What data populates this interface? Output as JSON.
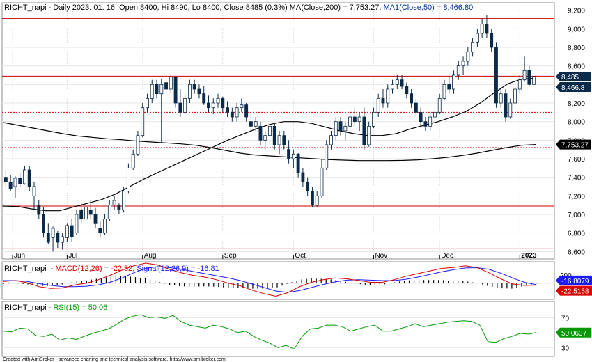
{
  "main_panel": {
    "header": {
      "symbol": "RICHT_napi",
      "info": " - Daily 2023. 01. 16. Open 8400, Hi 8490, Lo 8400, Close 8485 (0.3%) ",
      "ma200_text": "MA(Close,200) = 7,753.27,",
      "ma50_text": "MA1(Close,50) = 8,466.80"
    },
    "price_labels": {
      "close": "8,485",
      "ma50": "8,466.8",
      "ma200": "7,753.27"
    },
    "months": [
      "Jun",
      "Jul",
      "Aug",
      "Sep",
      "Oct",
      "Nov",
      "Dec",
      "2023"
    ]
  },
  "macd_panel": {
    "header": {
      "symbol": "RICHT_napi",
      "macd_text": "MACD(12,26) = -22.52,",
      "signal_text": "Signal(12,26,9) = -16.81"
    },
    "labels": {
      "top_tick": "200",
      "signal": "-16.8079",
      "macd": "-22.5158"
    }
  },
  "rsi_panel": {
    "header": {
      "symbol": "RICHT_napi",
      "rsi_text": "RSI(15) = 50.06"
    },
    "ticks": [
      "70",
      "30"
    ],
    "value_label": "50.0637"
  },
  "footer": "Created with AmiBroker - advanced charting and technical analysis software. http://www.amibroker.com",
  "colors": {
    "candle": "#0b2a4a",
    "ma": "#000000",
    "support_line": "#cc0000",
    "macd_line": "#dd0000",
    "signal_line": "#1a1aff",
    "rsi_line": "#009900",
    "close_label_bg": "#0b2a4a",
    "ma200_label_bg": "#000000",
    "signal_label_bg": "#1a1aff",
    "macd_label_bg": "#dd0000",
    "rsi_label_bg": "#009900"
  },
  "chart_data": [
    {
      "type": "candlestick",
      "title": "RICHT_napi - Daily",
      "y_ticks": [
        6600,
        6800,
        7000,
        7200,
        7400,
        7600,
        7800,
        8000,
        8200,
        8400,
        8600,
        8800,
        9000,
        9200
      ],
      "ylim": [
        6520,
        9280
      ],
      "horizontal_lines": [
        {
          "value": 9110,
          "style": "solid"
        },
        {
          "value": 8490,
          "style": "solid"
        },
        {
          "value": 8100,
          "style": "dotted"
        },
        {
          "value": 7720,
          "style": "dotted"
        },
        {
          "value": 7090,
          "style": "solid"
        },
        {
          "value": 6630,
          "style": "solid"
        }
      ],
      "last": {
        "open": 8400,
        "high": 8490,
        "low": 8400,
        "close": 8485,
        "change_pct": 0.3
      },
      "series": [
        {
          "name": "RICHT_napi",
          "ohlc": [
            [
              7400,
              7480,
              7300,
              7350
            ],
            [
              7350,
              7420,
              7250,
              7280
            ],
            [
              7300,
              7410,
              7180,
              7390
            ],
            [
              7390,
              7450,
              7300,
              7330
            ],
            [
              7330,
              7520,
              7320,
              7480
            ],
            [
              7480,
              7520,
              7250,
              7300
            ],
            [
              7200,
              7350,
              7050,
              7300
            ],
            [
              7100,
              7150,
              6950,
              7000
            ],
            [
              7000,
              7080,
              6750,
              6800
            ],
            [
              6800,
              6900,
              6680,
              6700
            ],
            [
              6750,
              6870,
              6600,
              6850
            ],
            [
              6800,
              6820,
              6640,
              6700
            ],
            [
              6700,
              6800,
              6620,
              6760
            ],
            [
              6750,
              6900,
              6700,
              6880
            ],
            [
              6880,
              6950,
              6700,
              6760
            ],
            [
              6800,
              7050,
              6780,
              7000
            ],
            [
              7050,
              7120,
              6900,
              6950
            ],
            [
              6950,
              7100,
              6930,
              7080
            ],
            [
              7050,
              7150,
              6950,
              7000
            ],
            [
              7000,
              7070,
              6850,
              6900
            ],
            [
              6850,
              6930,
              6750,
              6800
            ],
            [
              6800,
              7000,
              6780,
              6950
            ],
            [
              6950,
              7150,
              6930,
              7100
            ],
            [
              7100,
              7200,
              7050,
              7150
            ],
            [
              7100,
              7120,
              7000,
              7050
            ],
            [
              7050,
              7300,
              7020,
              7250
            ],
            [
              7250,
              7550,
              7230,
              7500
            ],
            [
              7500,
              7700,
              7480,
              7650
            ],
            [
              7650,
              7900,
              7630,
              7850
            ],
            [
              7850,
              8200,
              7830,
              8150
            ],
            [
              8150,
              8300,
              8100,
              8250
            ],
            [
              8250,
              8450,
              8200,
              8400
            ],
            [
              8400,
              8450,
              8250,
              8300
            ],
            [
              8300,
              8460,
              7780,
              8400
            ],
            [
              8420,
              8450,
              8300,
              8350
            ],
            [
              8350,
              8500,
              8300,
              8480
            ],
            [
              8480,
              8490,
              8150,
              8200
            ],
            [
              8200,
              8350,
              8050,
              8100
            ],
            [
              8100,
              8300,
              8080,
              8250
            ],
            [
              8250,
              8450,
              8200,
              8400
            ],
            [
              8400,
              8450,
              8300,
              8350
            ],
            [
              8350,
              8400,
              8250,
              8300
            ],
            [
              8300,
              8380,
              8180,
              8200
            ],
            [
              8200,
              8280,
              8100,
              8150
            ],
            [
              8150,
              8250,
              8080,
              8200
            ],
            [
              8200,
              8300,
              8150,
              8250
            ],
            [
              8250,
              8270,
              8100,
              8150
            ],
            [
              8150,
              8220,
              8050,
              8100
            ],
            [
              8100,
              8150,
              8000,
              8050
            ],
            [
              8050,
              8200,
              8000,
              8150
            ],
            [
              8150,
              8250,
              8100,
              8180
            ],
            [
              8180,
              8200,
              8000,
              8050
            ],
            [
              8000,
              8100,
              7900,
              7950
            ],
            [
              7950,
              8050,
              7900,
              8000
            ],
            [
              7950,
              8000,
              7750,
              7800
            ],
            [
              7800,
              7900,
              7700,
              7850
            ],
            [
              7850,
              8000,
              7830,
              7950
            ],
            [
              7950,
              7980,
              7700,
              7750
            ],
            [
              7750,
              7900,
              7650,
              7850
            ],
            [
              7850,
              7900,
              7700,
              7750
            ],
            [
              7700,
              7800,
              7550,
              7600
            ],
            [
              7600,
              7700,
              7500,
              7650
            ],
            [
              7650,
              7660,
              7400,
              7450
            ],
            [
              7450,
              7500,
              7300,
              7350
            ],
            [
              7350,
              7400,
              7200,
              7250
            ],
            [
              7250,
              7300,
              7080,
              7100
            ],
            [
              7100,
              7250,
              7080,
              7200
            ],
            [
              7200,
              7600,
              7180,
              7500
            ],
            [
              7500,
              7800,
              7480,
              7750
            ],
            [
              7750,
              7900,
              7700,
              7850
            ],
            [
              7850,
              8050,
              7800,
              8000
            ],
            [
              8000,
              8050,
              7850,
              7900
            ],
            [
              7900,
              8000,
              7800,
              7950
            ],
            [
              7950,
              8100,
              7900,
              8050
            ],
            [
              8050,
              8150,
              7950,
              8000
            ],
            [
              8000,
              8100,
              7900,
              8050
            ],
            [
              8050,
              8150,
              7700,
              7750
            ],
            [
              7750,
              8000,
              7730,
              7950
            ],
            [
              7950,
              8150,
              7930,
              8100
            ],
            [
              8100,
              8300,
              8050,
              8250
            ],
            [
              8250,
              8350,
              8150,
              8200
            ],
            [
              8200,
              8400,
              8150,
              8350
            ],
            [
              8350,
              8450,
              8300,
              8400
            ],
            [
              8400,
              8500,
              8350,
              8450
            ],
            [
              8450,
              8500,
              8350,
              8380
            ],
            [
              8380,
              8420,
              8250,
              8300
            ],
            [
              8300,
              8350,
              8150,
              8200
            ],
            [
              8200,
              8250,
              8050,
              8100
            ],
            [
              8100,
              8150,
              7950,
              8000
            ],
            [
              8000,
              8050,
              7900,
              7950
            ],
            [
              7950,
              8100,
              7900,
              8050
            ],
            [
              8050,
              8150,
              8000,
              8100
            ],
            [
              8100,
              8300,
              8080,
              8250
            ],
            [
              8250,
              8450,
              8230,
              8400
            ],
            [
              8400,
              8480,
              8300,
              8350
            ],
            [
              8350,
              8550,
              8300,
              8500
            ],
            [
              8500,
              8650,
              8450,
              8600
            ],
            [
              8600,
              8700,
              8500,
              8650
            ],
            [
              8650,
              8800,
              8600,
              8750
            ],
            [
              8750,
              8900,
              8700,
              8850
            ],
            [
              8850,
              9000,
              8800,
              8950
            ],
            [
              8950,
              9100,
              8900,
              9050
            ],
            [
              9050,
              9150,
              8900,
              8950
            ],
            [
              8950,
              9000,
              8750,
              8800
            ],
            [
              8800,
              8850,
              8150,
              8200
            ],
            [
              8200,
              8350,
              8150,
              8300
            ],
            [
              8300,
              8350,
              8000,
              8050
            ],
            [
              8050,
              8250,
              8030,
              8200
            ],
            [
              8200,
              8400,
              8180,
              8350
            ],
            [
              8350,
              8500,
              8300,
              8450
            ],
            [
              8450,
              8700,
              8430,
              8550
            ],
            [
              8550,
              8600,
              8380,
              8400
            ],
            [
              8400,
              8490,
              8400,
              8485
            ]
          ]
        },
        {
          "name": "MA(Close,200)",
          "values": [
            7990,
            7960,
            7930,
            7900,
            7870,
            7845,
            7830,
            7815,
            7805,
            7790,
            7780,
            7770,
            7760,
            7745,
            7720,
            7690,
            7660,
            7640,
            7630,
            7620,
            7610,
            7600,
            7590,
            7585,
            7580,
            7580,
            7580,
            7582,
            7588,
            7600,
            7615,
            7635,
            7660,
            7690,
            7720,
            7745,
            7753
          ]
        },
        {
          "name": "MA1(Close,50)",
          "values": [
            7090,
            7085,
            7060,
            7040,
            7040,
            7080,
            7120,
            7160,
            7220,
            7300,
            7380,
            7450,
            7520,
            7590,
            7660,
            7730,
            7800,
            7860,
            7920,
            7970,
            8000,
            8000,
            7980,
            7940,
            7900,
            7870,
            7850,
            7850,
            7870,
            7920,
            7960,
            8000,
            8050,
            8110,
            8200,
            8310,
            8410,
            8460,
            8466.8
          ]
        }
      ]
    },
    {
      "type": "line",
      "title": "MACD(12,26)",
      "ylim": [
        -170,
        230
      ],
      "series": [
        {
          "name": "MACD(12,26)",
          "values": [
            20,
            30,
            5,
            -40,
            -60,
            -55,
            -20,
            0,
            40,
            90,
            150,
            200,
            230,
            210,
            160,
            120,
            90,
            70,
            40,
            0,
            -30,
            -80,
            -120,
            -150,
            -110,
            -40,
            10,
            40,
            60,
            50,
            30,
            10,
            10,
            40,
            80,
            110,
            140,
            170,
            180,
            200,
            180,
            120,
            50,
            -10,
            -25,
            -22.52
          ]
        },
        {
          "name": "Signal(12,26,9)",
          "values": [
            30,
            30,
            20,
            -5,
            -25,
            -40,
            -40,
            -35,
            -20,
            10,
            60,
            120,
            170,
            190,
            180,
            160,
            135,
            110,
            85,
            60,
            30,
            -10,
            -50,
            -90,
            -105,
            -85,
            -50,
            -15,
            15,
            35,
            40,
            35,
            30,
            30,
            45,
            70,
            100,
            130,
            155,
            175,
            178,
            160,
            115,
            60,
            10,
            -16.81
          ]
        }
      ]
    },
    {
      "type": "line",
      "title": "RSI(15)",
      "y_ticks": [
        30,
        70
      ],
      "ylim": [
        20,
        90
      ],
      "series": [
        {
          "name": "RSI(15)",
          "values": [
            52,
            51,
            56,
            55,
            46,
            45,
            48,
            40,
            43,
            41,
            45,
            49,
            52,
            55,
            61,
            68,
            72,
            74,
            70,
            71,
            69,
            73,
            65,
            60,
            58,
            56,
            60,
            58,
            55,
            50,
            52,
            45,
            40,
            36,
            30,
            33,
            28,
            45,
            55,
            56,
            60,
            60,
            58,
            52,
            55,
            58,
            60,
            52,
            52,
            55,
            58,
            62,
            58,
            60,
            62,
            64,
            65,
            66,
            65,
            60,
            38,
            37,
            42,
            45,
            49,
            48,
            50.06
          ]
        }
      ]
    }
  ]
}
